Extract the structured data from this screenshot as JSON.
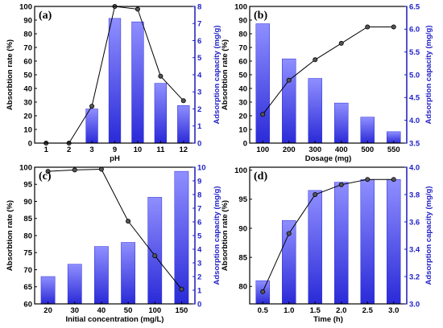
{
  "colors": {
    "bar_top": "#8f8fff",
    "bar_bottom": "#2a2ad8",
    "line": "#000000",
    "marker": "#000000",
    "left_axis": "#000000",
    "right_axis": "#2020c8"
  },
  "chart_data": [
    {
      "type": "bar+line",
      "panel_label": "(a)",
      "categories": [
        "1",
        "2",
        "3",
        "9",
        "10",
        "11",
        "12"
      ],
      "xlabel": "pH",
      "ylabel_left": "Absorbtion rate (%)",
      "ylabel_right": "Adsorption capacity (mg/g)",
      "ylim_left": [
        0,
        100
      ],
      "yticks_left": [
        "0",
        "10",
        "20",
        "30",
        "40",
        "50",
        "60",
        "70",
        "80",
        "90",
        "100"
      ],
      "ylim_right": [
        0,
        8
      ],
      "yticks_right": [
        "0",
        "1",
        "2",
        "3",
        "4",
        "5",
        "6",
        "7",
        "8"
      ],
      "series": [
        {
          "axis": "right",
          "kind": "bar",
          "values": [
            0,
            0,
            2.0,
            7.3,
            7.1,
            3.5,
            2.2
          ]
        },
        {
          "axis": "left",
          "kind": "line",
          "values": [
            0,
            0,
            27,
            100,
            98,
            49,
            31
          ]
        }
      ]
    },
    {
      "type": "bar+line",
      "panel_label": "(b)",
      "categories": [
        "100",
        "200",
        "300",
        "400",
        "500",
        "550"
      ],
      "xlabel": "Dosage (mg)",
      "ylabel_left": "Absorbtion rate (%)",
      "ylabel_right": "Adsorption capacity (mg/g)",
      "ylim_left": [
        0,
        100
      ],
      "yticks_left": [
        "0",
        "10",
        "20",
        "30",
        "40",
        "50",
        "60",
        "70",
        "80",
        "90",
        "100"
      ],
      "ylim_right": [
        3.5,
        6.5
      ],
      "yticks_right": [
        "3.5",
        "4.0",
        "4.5",
        "5.0",
        "5.5",
        "6.0",
        "6.5"
      ],
      "series": [
        {
          "axis": "right",
          "kind": "bar",
          "values": [
            6.12,
            5.35,
            4.92,
            4.38,
            4.07,
            3.75
          ]
        },
        {
          "axis": "left",
          "kind": "line",
          "values": [
            21,
            46,
            61,
            73,
            85,
            85
          ]
        }
      ]
    },
    {
      "type": "bar+line",
      "panel_label": "(c)",
      "categories": [
        "20",
        "30",
        "40",
        "50",
        "100",
        "150"
      ],
      "xlabel": "Initial concentration (mg/L)",
      "ylabel_left": "Absorbtion rate (%)",
      "ylabel_right": "Adsorption capacity (mg/g)",
      "ylim_left": [
        60,
        100
      ],
      "yticks_left": [
        "60",
        "65",
        "70",
        "75",
        "80",
        "85",
        "90",
        "95",
        "100"
      ],
      "ylim_right": [
        0,
        10
      ],
      "yticks_right": [
        "0",
        "1",
        "2",
        "3",
        "4",
        "5",
        "6",
        "7",
        "8",
        "9",
        "10"
      ],
      "series": [
        {
          "axis": "right",
          "kind": "bar",
          "values": [
            2.0,
            2.9,
            4.2,
            4.5,
            7.8,
            9.7
          ]
        },
        {
          "axis": "left",
          "kind": "line",
          "values": [
            98.8,
            99.2,
            99.4,
            84.2,
            74.1,
            64.3
          ]
        }
      ]
    },
    {
      "type": "bar+line",
      "panel_label": "(d)",
      "categories": [
        "0.5",
        "1.0",
        "1.5",
        "2.0",
        "2.5",
        "3.0"
      ],
      "xlabel": "Time (h)",
      "ylabel_left": "Absorbtion rate (%)",
      "ylabel_right": "Adsorption capacity (mg/g)",
      "ylim_left": [
        77,
        100.5
      ],
      "yticks_left": [
        "80",
        "85",
        "90",
        "95",
        "100"
      ],
      "ylim_right": [
        3.0,
        4.0
      ],
      "yticks_right": [
        "3.0",
        "3.2",
        "3.4",
        "3.6",
        "3.8",
        "4.0"
      ],
      "series": [
        {
          "axis": "right",
          "kind": "bar",
          "values": [
            3.17,
            3.61,
            3.83,
            3.89,
            3.91,
            3.91
          ]
        },
        {
          "axis": "left",
          "kind": "line",
          "values": [
            79.1,
            89.1,
            95.8,
            97.5,
            98.4,
            98.4
          ]
        }
      ]
    }
  ]
}
